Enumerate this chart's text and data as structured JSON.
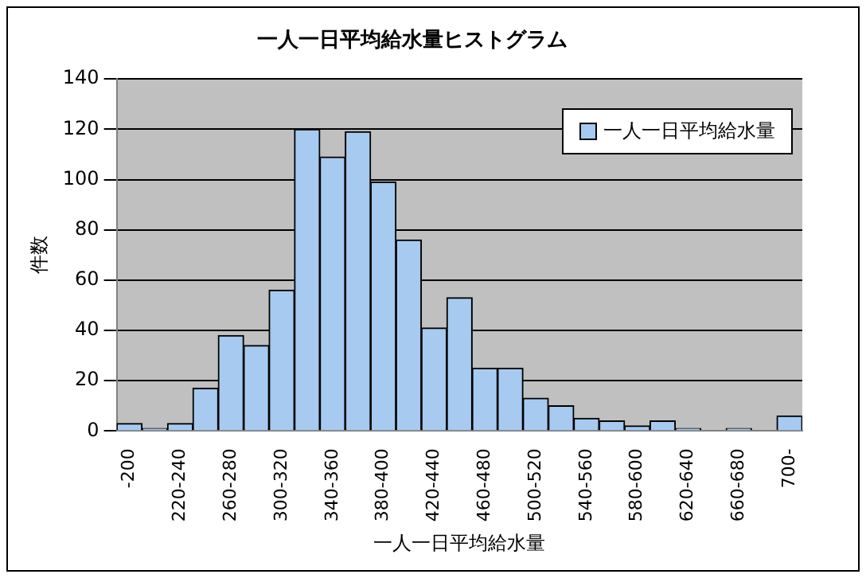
{
  "chart_data": {
    "type": "bar",
    "title": "一人一日平均給水量ヒストグラム",
    "xlabel": "一人一日平均給水量",
    "ylabel": "件数",
    "categories": [
      "-200",
      null,
      "220-240",
      null,
      "260-280",
      null,
      "300-320",
      null,
      "340-360",
      null,
      "380-400",
      null,
      "420-440",
      null,
      "460-480",
      null,
      "500-520",
      null,
      "540-560",
      null,
      "580-600",
      null,
      "620-640",
      null,
      "660-680",
      null,
      "700-"
    ],
    "series": [
      {
        "name": "一人一日平均給水量",
        "color": "#a6caf0",
        "values": [
          3,
          1,
          3,
          17,
          38,
          34,
          56,
          120,
          109,
          119,
          99,
          76,
          41,
          53,
          25,
          25,
          13,
          10,
          5,
          4,
          2,
          4,
          1,
          0,
          1,
          0,
          6
        ]
      }
    ],
    "ylim": [
      0,
      140
    ],
    "yticks": [
      0,
      20,
      40,
      60,
      80,
      100,
      120,
      140
    ],
    "grid": "y",
    "legend": "top right"
  }
}
